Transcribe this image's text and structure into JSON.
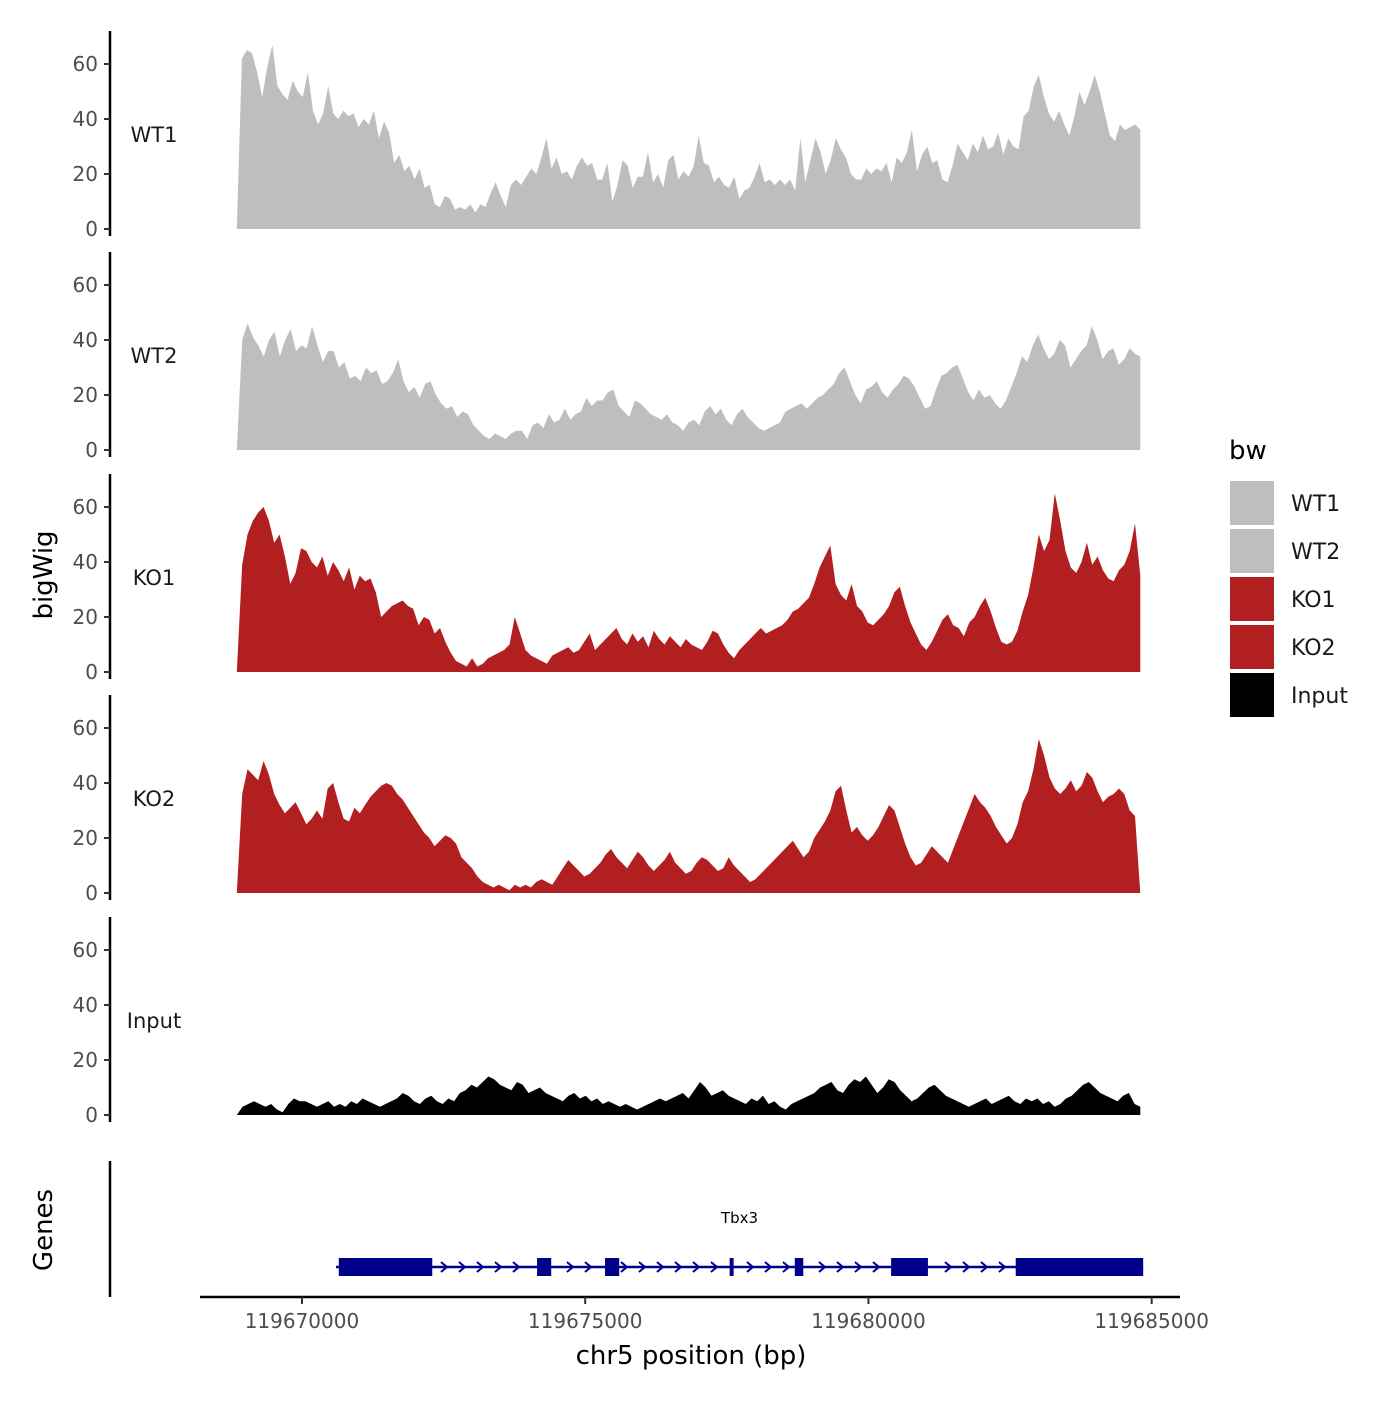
{
  "chart_data": {
    "type": "area",
    "y_axis_title": "bigWig",
    "genes_axis_title": "Genes",
    "x_axis_title": "chr5 position (bp)",
    "x_range": [
      119668200,
      119685500
    ],
    "x_ticks": [
      119670000,
      119675000,
      119680000,
      119685000
    ],
    "x_tick_labels": [
      "119670000",
      "119675000",
      "119680000",
      "119685000"
    ],
    "y_range": [
      0,
      72
    ],
    "y_ticks": [
      0,
      20,
      40,
      60
    ],
    "y_tick_labels": [
      "0",
      "20",
      "40",
      "60"
    ],
    "legend": {
      "title": "bw",
      "position": "right",
      "entries": [
        {
          "label": "WT1",
          "color": "#bebebe"
        },
        {
          "label": "WT2",
          "color": "#bebebe"
        },
        {
          "label": "KO1",
          "color": "#b21f20"
        },
        {
          "label": "KO2",
          "color": "#b21f20"
        },
        {
          "label": "Input",
          "color": "#000000"
        }
      ]
    },
    "tracks": [
      {
        "name": "WT1",
        "color": "#bebebe",
        "x_start": 119668850,
        "x_end": 119684800,
        "values": [
          0,
          62,
          65,
          64,
          57,
          48,
          59,
          67,
          52,
          49,
          47,
          54,
          50,
          48,
          57,
          43,
          38,
          42,
          52,
          42,
          40,
          43,
          41,
          42,
          37,
          40,
          38,
          43,
          33,
          39,
          35,
          24,
          27,
          21,
          23,
          18,
          22,
          15,
          16,
          9,
          8,
          12,
          11,
          7,
          8,
          7,
          9,
          6,
          9,
          8,
          13,
          17,
          12,
          8,
          16,
          18,
          16,
          19,
          22,
          20,
          26,
          33,
          22,
          26,
          20,
          21,
          18,
          23,
          26,
          23,
          24,
          18,
          18,
          24,
          10,
          16,
          25,
          23,
          15,
          19,
          19,
          28,
          17,
          20,
          15,
          25,
          27,
          18,
          21,
          19,
          23,
          34,
          24,
          23,
          17,
          19,
          16,
          15,
          19,
          11,
          14,
          15,
          19,
          24,
          17,
          18,
          16,
          18,
          16,
          18,
          14,
          33,
          17,
          25,
          33,
          28,
          20,
          25,
          33,
          29,
          26,
          20,
          18,
          18,
          22,
          20,
          22,
          21,
          24,
          17,
          26,
          24,
          28,
          36,
          21,
          27,
          30,
          24,
          25,
          18,
          17,
          23,
          31,
          28,
          25,
          31,
          28,
          34,
          29,
          30,
          35,
          27,
          33,
          30,
          29,
          41,
          43,
          52,
          56,
          48,
          42,
          39,
          43,
          38,
          34,
          41,
          50,
          45,
          50,
          56,
          50,
          42,
          34,
          32,
          38,
          36,
          37,
          38,
          36
        ]
      },
      {
        "name": "WT2",
        "color": "#bebebe",
        "x_start": 119668850,
        "x_end": 119684800,
        "values": [
          0,
          40,
          46,
          41,
          38,
          34,
          40,
          43,
          34,
          40,
          44,
          36,
          38,
          37,
          45,
          38,
          32,
          36,
          36,
          30,
          32,
          26,
          27,
          25,
          30,
          28,
          29,
          24,
          25,
          28,
          33,
          25,
          21,
          23,
          19,
          24,
          25,
          20,
          17,
          15,
          16,
          12,
          14,
          13,
          9,
          7,
          5,
          4,
          6,
          5,
          4,
          6,
          7,
          7,
          4,
          9,
          10,
          8,
          13,
          10,
          11,
          15,
          11,
          13,
          14,
          19,
          16,
          18,
          18,
          21,
          22,
          16,
          14,
          12,
          18,
          17,
          15,
          13,
          12,
          11,
          13,
          10,
          9,
          7,
          10,
          11,
          9,
          14,
          16,
          13,
          15,
          11,
          9,
          13,
          15,
          12,
          10,
          8,
          7,
          8,
          9,
          10,
          14,
          15,
          16,
          17,
          15,
          17,
          19,
          20,
          22,
          24,
          28,
          30,
          25,
          20,
          17,
          22,
          23,
          25,
          21,
          19,
          22,
          24,
          27,
          26,
          23,
          19,
          15,
          16,
          22,
          27,
          28,
          30,
          31,
          26,
          21,
          18,
          22,
          19,
          20,
          17,
          15,
          18,
          23,
          28,
          34,
          32,
          38,
          42,
          37,
          33,
          35,
          40,
          38,
          30,
          33,
          36,
          38,
          45,
          40,
          33,
          36,
          37,
          31,
          33,
          37,
          35,
          34
        ]
      },
      {
        "name": "KO1",
        "color": "#b21f20",
        "x_start": 119668850,
        "x_end": 119684800,
        "values": [
          0,
          39,
          50,
          55,
          58,
          60,
          55,
          47,
          50,
          42,
          32,
          36,
          45,
          44,
          40,
          38,
          42,
          35,
          40,
          37,
          33,
          38,
          30,
          35,
          33,
          34,
          29,
          20,
          22,
          24,
          25,
          26,
          24,
          23,
          17,
          20,
          19,
          14,
          16,
          11,
          7,
          4,
          3,
          2,
          5,
          2,
          3,
          5,
          6,
          7,
          8,
          10,
          20,
          14,
          8,
          6,
          5,
          4,
          3,
          6,
          7,
          8,
          9,
          7,
          8,
          11,
          14,
          8,
          10,
          12,
          14,
          16,
          12,
          10,
          14,
          11,
          13,
          9,
          15,
          12,
          10,
          13,
          11,
          9,
          12,
          10,
          9,
          8,
          11,
          15,
          14,
          10,
          7,
          5,
          8,
          10,
          12,
          14,
          16,
          14,
          15,
          16,
          17,
          19,
          22,
          23,
          25,
          27,
          32,
          38,
          42,
          46,
          32,
          28,
          26,
          32,
          24,
          22,
          18,
          17,
          19,
          21,
          24,
          29,
          31,
          24,
          18,
          14,
          10,
          8,
          11,
          15,
          19,
          21,
          17,
          16,
          13,
          18,
          20,
          24,
          27,
          22,
          16,
          11,
          10,
          11,
          15,
          22,
          28,
          38,
          50,
          44,
          48,
          65,
          55,
          44,
          38,
          36,
          40,
          47,
          39,
          42,
          37,
          34,
          33,
          37,
          39,
          44,
          54,
          35
        ]
      },
      {
        "name": "KO2",
        "color": "#b21f20",
        "x_start": 119668850,
        "x_end": 119684800,
        "values": [
          0,
          36,
          45,
          43,
          41,
          48,
          43,
          36,
          32,
          29,
          31,
          33,
          29,
          25,
          27,
          30,
          27,
          38,
          40,
          33,
          27,
          26,
          31,
          29,
          32,
          35,
          37,
          39,
          40,
          39,
          36,
          34,
          31,
          28,
          25,
          22,
          20,
          17,
          19,
          21,
          20,
          18,
          13,
          11,
          9,
          6,
          4,
          3,
          2,
          3,
          2,
          1,
          3,
          2,
          3,
          2,
          4,
          5,
          4,
          3,
          6,
          9,
          12,
          10,
          8,
          6,
          7,
          9,
          11,
          14,
          16,
          13,
          11,
          9,
          12,
          15,
          13,
          10,
          8,
          10,
          12,
          15,
          11,
          9,
          7,
          8,
          11,
          13,
          12,
          10,
          8,
          9,
          13,
          10,
          8,
          6,
          4,
          5,
          7,
          9,
          11,
          13,
          15,
          17,
          19,
          16,
          13,
          15,
          20,
          23,
          26,
          30,
          37,
          39,
          30,
          22,
          24,
          21,
          19,
          21,
          24,
          28,
          32,
          30,
          24,
          18,
          13,
          10,
          11,
          14,
          17,
          15,
          13,
          11,
          16,
          21,
          26,
          31,
          36,
          33,
          31,
          28,
          24,
          21,
          18,
          20,
          25,
          33,
          37,
          45,
          56,
          50,
          42,
          38,
          36,
          38,
          41,
          37,
          39,
          44,
          42,
          37,
          33,
          35,
          36,
          38,
          36,
          30,
          28,
          0
        ]
      },
      {
        "name": "Input",
        "color": "#000000",
        "x_start": 119668850,
        "x_end": 119684800,
        "values": [
          0,
          3,
          4,
          5,
          4,
          3,
          4,
          2,
          1,
          4,
          6,
          5,
          5,
          4,
          3,
          4,
          5,
          3,
          4,
          3,
          5,
          4,
          6,
          5,
          4,
          3,
          4,
          5,
          6,
          8,
          7,
          5,
          4,
          6,
          7,
          5,
          4,
          6,
          5,
          8,
          9,
          11,
          10,
          12,
          14,
          13,
          11,
          10,
          9,
          12,
          11,
          8,
          9,
          10,
          8,
          7,
          6,
          5,
          7,
          8,
          6,
          7,
          5,
          6,
          4,
          5,
          4,
          3,
          4,
          3,
          2,
          3,
          4,
          5,
          6,
          5,
          6,
          7,
          8,
          6,
          9,
          12,
          10,
          7,
          8,
          9,
          7,
          6,
          5,
          4,
          6,
          5,
          7,
          4,
          5,
          3,
          2,
          4,
          5,
          6,
          7,
          8,
          10,
          11,
          12,
          9,
          8,
          11,
          13,
          12,
          14,
          11,
          8,
          10,
          13,
          12,
          9,
          7,
          5,
          6,
          8,
          10,
          11,
          9,
          7,
          6,
          5,
          4,
          3,
          4,
          5,
          6,
          4,
          5,
          6,
          7,
          5,
          4,
          6,
          5,
          6,
          4,
          5,
          3,
          4,
          6,
          7,
          9,
          11,
          12,
          10,
          8,
          7,
          6,
          5,
          7,
          8,
          4,
          3
        ]
      }
    ],
    "gene": {
      "name": "Tbx3",
      "color": "#00008b",
      "strand": "+",
      "start": 119670600,
      "end": 119684850,
      "exons": [
        [
          119670650,
          119672300
        ],
        [
          119674150,
          119674400
        ],
        [
          119675350,
          119675600
        ],
        [
          119677550,
          119677620
        ],
        [
          119678700,
          119678850
        ],
        [
          119680400,
          119681050
        ],
        [
          119682600,
          119684850
        ]
      ]
    }
  }
}
